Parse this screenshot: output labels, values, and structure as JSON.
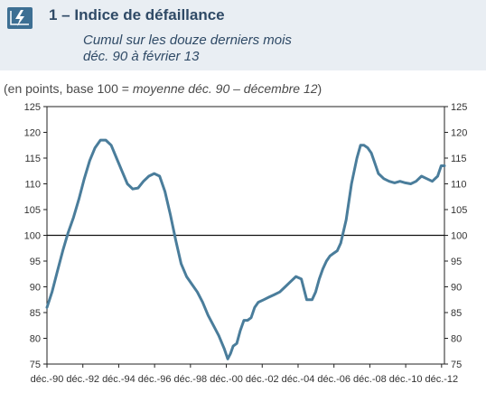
{
  "header": {
    "title": "1 – Indice de défaillance",
    "subtitle_line1": "Cumul sur les douze derniers mois",
    "subtitle_line2": "déc. 90 à février 13",
    "units_prefix": "(en points, base 100 = ",
    "units_italic": "moyenne déc. 90 – décembre 12",
    "units_suffix": ")",
    "logo_icon": "lightning-bolt-icon"
  },
  "colors": {
    "line": "#4a7d9b",
    "header_band": "#e9eef3",
    "title": "#2f4a66"
  },
  "chart_data": {
    "type": "line",
    "ylim": [
      75,
      125
    ],
    "yticks": [
      75,
      80,
      85,
      90,
      95,
      100,
      105,
      110,
      115,
      120,
      125
    ],
    "ytick_labels": [
      "75",
      "80",
      "85",
      "90",
      "95",
      "100",
      "105",
      "110",
      "115",
      "120",
      "125"
    ],
    "xlim": [
      1990.92,
      2013.08
    ],
    "xticks": [
      1990.92,
      1992.92,
      1994.92,
      1996.92,
      1998.92,
      2000.92,
      2002.92,
      2004.92,
      2006.92,
      2008.92,
      2010.92,
      2012.92
    ],
    "xtick_labels": [
      "déc.-90",
      "déc.-92",
      "déc.-94",
      "déc.-96",
      "déc.-98",
      "déc.-00",
      "déc.-02",
      "déc.-04",
      "déc.-06",
      "déc.-08",
      "déc.-10",
      "déc.-12"
    ],
    "reference_line": 100,
    "grid": false,
    "x": [
      1990.92,
      1991.2,
      1991.5,
      1991.8,
      1992.1,
      1992.4,
      1992.7,
      1993.0,
      1993.3,
      1993.6,
      1993.9,
      1994.2,
      1994.5,
      1994.8,
      1995.1,
      1995.4,
      1995.7,
      1996.0,
      1996.3,
      1996.6,
      1996.9,
      1997.2,
      1997.5,
      1997.8,
      1998.1,
      1998.4,
      1998.7,
      1999.0,
      1999.3,
      1999.6,
      1999.9,
      2000.2,
      2000.5,
      2000.8,
      2001.0,
      2001.15,
      2001.3,
      2001.5,
      2001.7,
      2001.9,
      2002.1,
      2002.3,
      2002.5,
      2002.7,
      2003.0,
      2003.3,
      2003.6,
      2003.9,
      2004.2,
      2004.5,
      2004.8,
      2005.1,
      2005.4,
      2005.7,
      2005.9,
      2006.1,
      2006.3,
      2006.5,
      2006.7,
      2006.9,
      2007.1,
      2007.3,
      2007.6,
      2007.9,
      2008.2,
      2008.4,
      2008.6,
      2008.8,
      2009.0,
      2009.2,
      2009.4,
      2009.7,
      2010.0,
      2010.3,
      2010.6,
      2010.9,
      2011.2,
      2011.5,
      2011.8,
      2012.1,
      2012.4,
      2012.7,
      2012.9,
      2013.08
    ],
    "y": [
      86,
      89,
      93,
      97,
      100.5,
      103.5,
      107,
      111,
      114.5,
      117,
      118.5,
      118.5,
      117.5,
      115,
      112.5,
      110,
      109,
      109.2,
      110.5,
      111.5,
      112,
      111.5,
      108.5,
      104,
      99,
      94.5,
      92,
      90.5,
      89,
      87,
      84.5,
      82.5,
      80.5,
      78,
      76,
      77,
      78.5,
      79,
      81.5,
      83.5,
      83.5,
      84,
      86,
      87,
      87.5,
      88,
      88.5,
      89,
      90,
      91,
      92,
      91.5,
      87.5,
      87.5,
      89,
      91.5,
      93.5,
      95,
      96,
      96.5,
      97,
      98.5,
      103,
      110,
      115,
      117.5,
      117.5,
      117,
      116,
      114,
      112,
      111,
      110.5,
      110.2,
      110.5,
      110.2,
      110,
      110.5,
      111.5,
      111,
      110.5,
      111.5,
      113.5,
      113.5
    ],
    "series": [
      {
        "values_ref": "y"
      }
    ]
  }
}
